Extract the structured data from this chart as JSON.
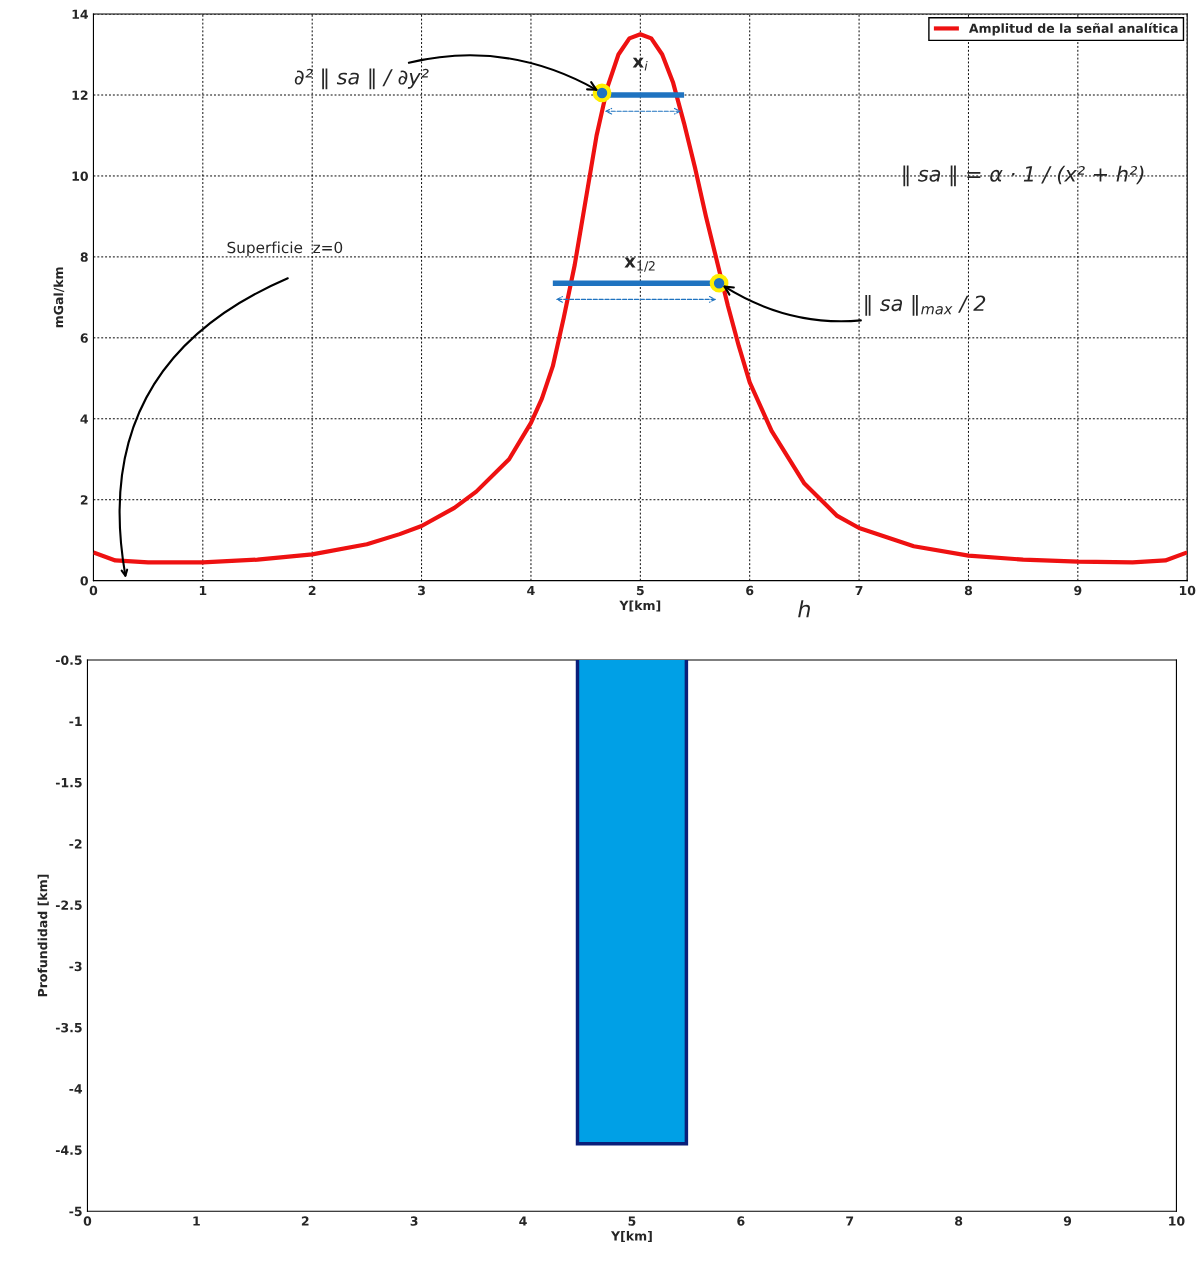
{
  "chart_data": [
    {
      "type": "line",
      "xlabel": "Y[km]",
      "ylabel": "mGal/km",
      "xlim": [
        0,
        10
      ],
      "ylim": [
        0,
        14
      ],
      "xticks": [
        0,
        1,
        2,
        3,
        4,
        5,
        6,
        7,
        8,
        9,
        10
      ],
      "yticks": [
        0,
        2,
        4,
        6,
        8,
        10,
        12,
        14
      ],
      "grid": true,
      "legend": "top right",
      "series": [
        {
          "name": "Amplitud de la señal analítica",
          "color": "#ee1111",
          "x": [
            0,
            0.2,
            0.5,
            1,
            1.5,
            2,
            2.5,
            2.8,
            3,
            3.3,
            3.5,
            3.8,
            4,
            4.1,
            4.2,
            4.3,
            4.4,
            4.5,
            4.6,
            4.7,
            4.8,
            4.9,
            5,
            5.1,
            5.2,
            5.3,
            5.4,
            5.5,
            5.6,
            5.7,
            5.8,
            5.9,
            6,
            6.1,
            6.2,
            6.5,
            6.8,
            7,
            7.5,
            8,
            8.5,
            9,
            9.5,
            9.8,
            10
          ],
          "values": [
            0.7,
            0.5,
            0.45,
            0.45,
            0.52,
            0.65,
            0.9,
            1.15,
            1.35,
            1.8,
            2.2,
            3.0,
            3.9,
            4.5,
            5.3,
            6.5,
            7.8,
            9.4,
            11.0,
            12.2,
            13.0,
            13.4,
            13.5,
            13.4,
            13.0,
            12.3,
            11.3,
            10.2,
            9.0,
            7.9,
            6.8,
            5.8,
            4.9,
            4.3,
            3.7,
            2.4,
            1.6,
            1.3,
            0.85,
            0.62,
            0.52,
            0.47,
            0.45,
            0.5,
            0.7
          ]
        },
        {
          "type": "line",
          "color": "#1f73c0",
          "x": [
            4.65,
            5.4
          ],
          "values": [
            12.0,
            12.0
          ]
        },
        {
          "type": "line",
          "color": "#1f73c0",
          "x": [
            4.2,
            5.72
          ],
          "values": [
            7.35,
            7.35
          ]
        },
        {
          "type": "scatter",
          "color": "#1f73c0",
          "x": [
            4.65,
            5.72
          ],
          "values": [
            12.05,
            7.35
          ]
        }
      ],
      "annotations": [
        {
          "text": "∂² ‖ sa ‖ / ∂y²",
          "x": 4.65,
          "y": 12.05
        },
        "x$_{i}$",
        "x$_{1/2}$",
        "‖ sa ‖ = α · 1 / (x² + h²)",
        {
          "text": "‖ sa ‖$_{max}$ / 2",
          "x": 5.72,
          "y": 7.35
        },
        "Superficie  z=0",
        "h"
      ]
    },
    {
      "type": "bar",
      "xlabel": "Y[km]",
      "ylabel": "Profundidad [km]",
      "xlim": [
        0,
        10
      ],
      "ylim": [
        -5,
        -0.5
      ],
      "xticks": [
        0,
        1,
        2,
        3,
        4,
        5,
        6,
        7,
        8,
        9,
        10
      ],
      "yticks": [
        -5,
        -4.5,
        -4,
        -3.5,
        -3,
        -2.5,
        -2,
        -1.5,
        -1,
        -0.5
      ],
      "grid": false,
      "x": [
        5
      ],
      "base": [
        -0.45
      ],
      "values": [
        -4.0
      ],
      "color": "#00a0e6"
    }
  ]
}
